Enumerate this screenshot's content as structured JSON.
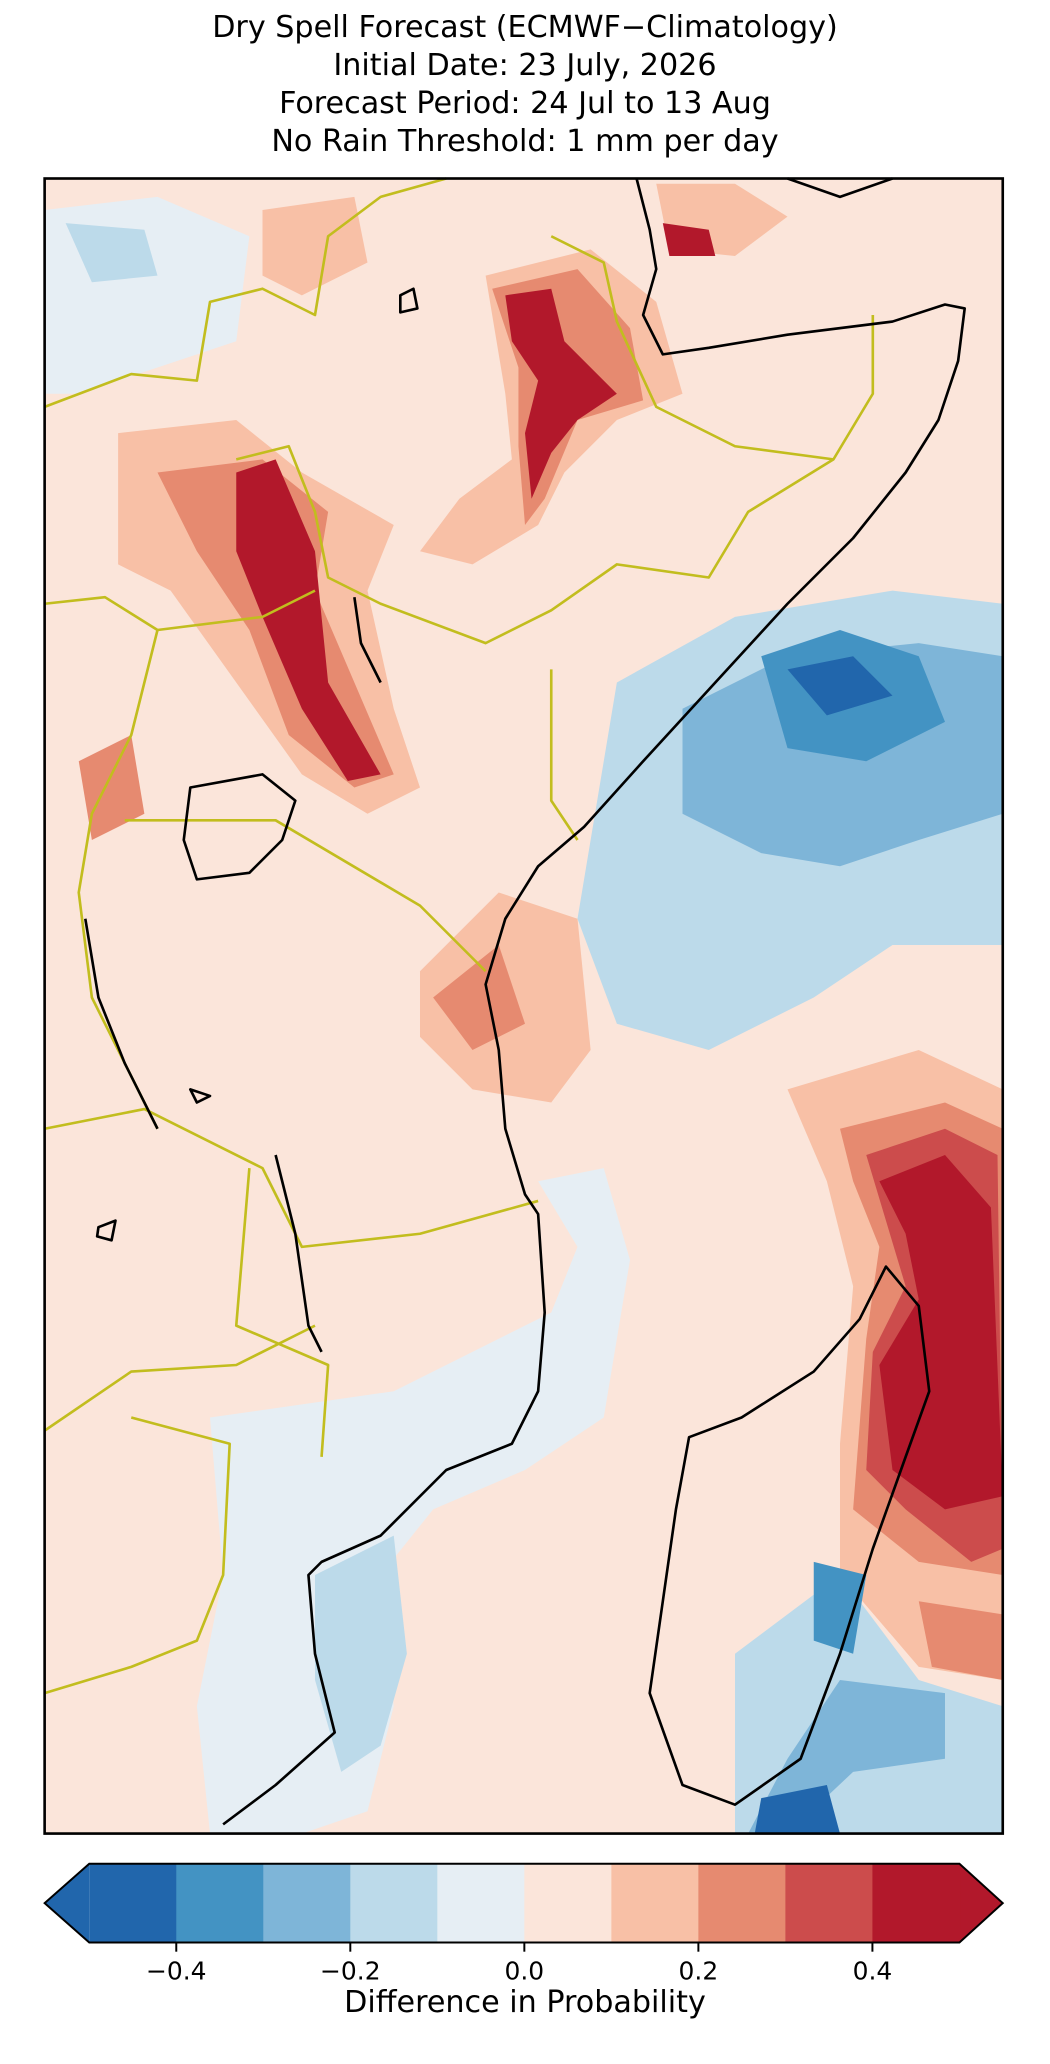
{
  "title": [
    "Dry Spell Forecast (ECMWF−Climatology)",
    "Initial Date: 23 July, 2026",
    "Forecast Period: 24 Jul to 13 Aug",
    "No Rain Threshold: 1 mm per day"
  ],
  "colorbar": {
    "bounds": [
      -0.5,
      -0.4,
      -0.3,
      -0.2,
      -0.1,
      0,
      0.1,
      0.2,
      0.3,
      0.4,
      0.5
    ],
    "colors": [
      "#2166ac",
      "#4393c3",
      "#7eb5d8",
      "#bcdaea",
      "#e6eef4",
      "#fbe5da",
      "#f8c0a6",
      "#e68a70",
      "#cc4c4c",
      "#b2182b"
    ],
    "ticks": [
      {
        "value": -0.4,
        "label": "−0.4"
      },
      {
        "value": -0.2,
        "label": "−0.2"
      },
      {
        "value": 0,
        "label": "0.0"
      },
      0.2,
      0.4
    ],
    "label": "Difference in Probability"
  }
}
